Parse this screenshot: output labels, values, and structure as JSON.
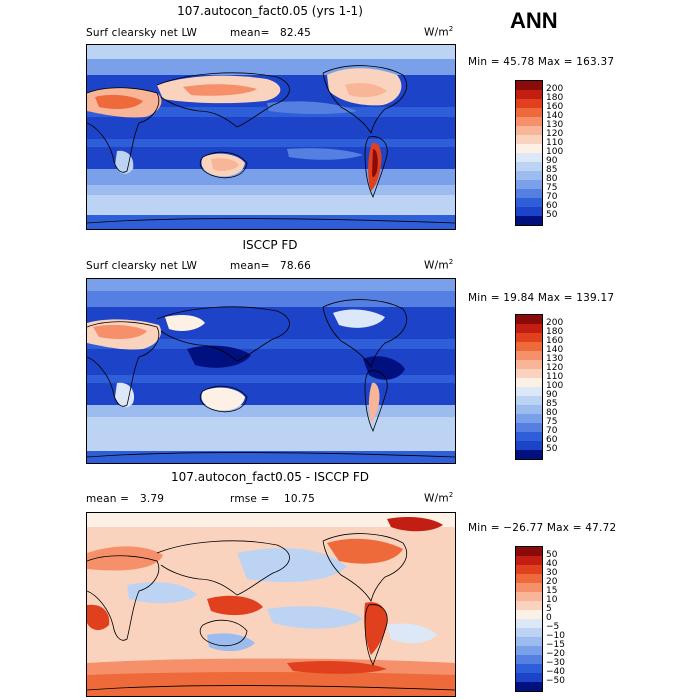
{
  "season": "ANN",
  "panels": [
    {
      "id": "model",
      "title": "107.autocon_fact0.05 (yrs 1-1)",
      "field_label": "Surf clearsky net LW",
      "stat1_label": "mean=",
      "stat1_value": "82.45",
      "stat2_label": "",
      "stat2_value": "",
      "units": "W/m",
      "units_exp": "2",
      "minmax": "Min =  45.78 Max = 163.37",
      "levels": [
        "200",
        "180",
        "160",
        "140",
        "130",
        "120",
        "110",
        "100",
        "90",
        "85",
        "80",
        "75",
        "70",
        "60",
        "50"
      ],
      "colors": [
        "#8b0a0a",
        "#c21f12",
        "#e0401e",
        "#ef6a3a",
        "#f5906a",
        "#f8b597",
        "#fad3be",
        "#fdf0e4",
        "#dce8f7",
        "#bcd3f3",
        "#9cbcef",
        "#7aa0ea",
        "#5580e2",
        "#2f5ed9",
        "#1d43c8",
        "#00107f"
      ]
    },
    {
      "id": "obs",
      "title": "ISCCP FD",
      "field_label": "Surf clearsky net LW",
      "stat1_label": "mean=",
      "stat1_value": "78.66",
      "stat2_label": "",
      "stat2_value": "",
      "units": "W/m",
      "units_exp": "2",
      "minmax": "Min =  19.84 Max = 139.17",
      "levels": [
        "200",
        "180",
        "160",
        "140",
        "130",
        "120",
        "110",
        "100",
        "90",
        "85",
        "80",
        "75",
        "70",
        "60",
        "50"
      ],
      "colors": [
        "#8b0a0a",
        "#c21f12",
        "#e0401e",
        "#ef6a3a",
        "#f5906a",
        "#f8b597",
        "#fad3be",
        "#fdf0e4",
        "#dce8f7",
        "#bcd3f3",
        "#9cbcef",
        "#7aa0ea",
        "#5580e2",
        "#2f5ed9",
        "#1d43c8",
        "#00107f"
      ]
    },
    {
      "id": "diff",
      "title": "107.autocon_fact0.05 - ISCCP FD",
      "field_label": "",
      "stat1_label": "mean =",
      "stat1_value": "3.79",
      "stat2_label": "rmse =",
      "stat2_value": "10.75",
      "units": "W/m",
      "units_exp": "2",
      "minmax": "Min = −26.77 Max =  47.72",
      "levels": [
        "50",
        "40",
        "30",
        "20",
        "15",
        "10",
        "5",
        "0",
        "−5",
        "−10",
        "−15",
        "−20",
        "−30",
        "−40",
        "−50"
      ],
      "colors": [
        "#8b0a0a",
        "#c21f12",
        "#e0401e",
        "#ef6a3a",
        "#f5906a",
        "#f8b597",
        "#fad3be",
        "#fdf0e4",
        "#dce8f7",
        "#bcd3f3",
        "#9cbcef",
        "#7aa0ea",
        "#5580e2",
        "#2f5ed9",
        "#1d43c8",
        "#00107f"
      ]
    }
  ]
}
